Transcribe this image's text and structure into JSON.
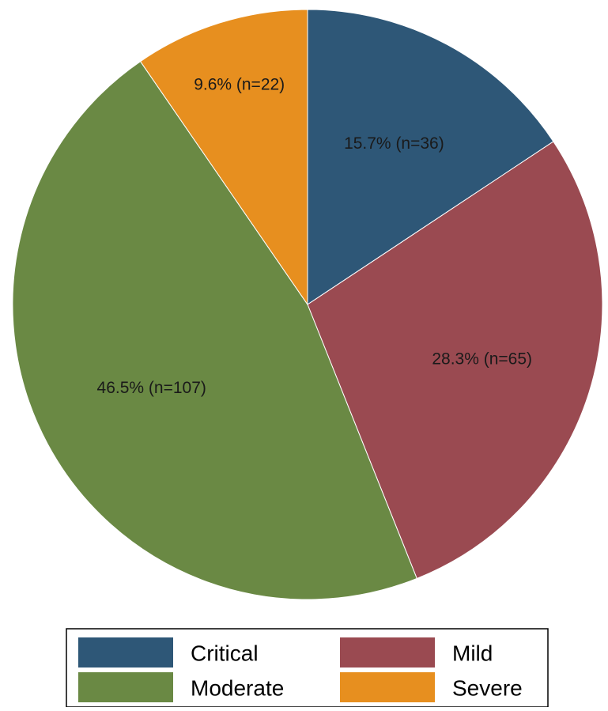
{
  "chart_data": {
    "type": "pie",
    "title": "",
    "start_angle": "12 o'clock",
    "direction": "clockwise",
    "slices": [
      {
        "label": "Critical",
        "percent": 15.7,
        "n": 36,
        "color": "#2e5777",
        "data_label": "15.7% (n=36)"
      },
      {
        "label": "Mild",
        "percent": 28.3,
        "n": 65,
        "color": "#9a4a51",
        "data_label": "28.3% (n=65)"
      },
      {
        "label": "Moderate",
        "percent": 46.5,
        "n": 107,
        "color": "#6a8944",
        "data_label": "46.5% (n=107)"
      },
      {
        "label": "Severe",
        "percent": 9.6,
        "n": 22,
        "color": "#e78f1f",
        "data_label": "9.6% (n=22)"
      }
    ],
    "legend": {
      "placement": "bottom",
      "columns": 2,
      "entries": [
        "Critical",
        "Mild",
        "Moderate",
        "Severe"
      ]
    }
  }
}
